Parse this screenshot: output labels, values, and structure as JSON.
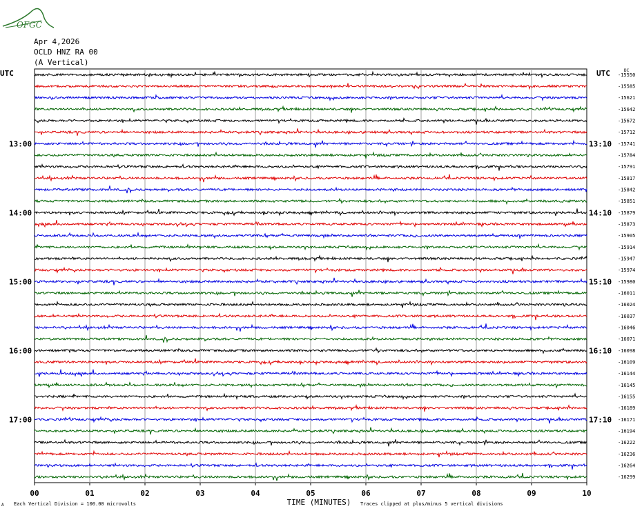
{
  "header": {
    "logo_text": "OFGC",
    "date": "Apr 4,2026",
    "station": "OCLD HNZ RA 00",
    "component": "(A Vertical)",
    "utc_left": "UTC",
    "utc_right": "UTC",
    "dc_label": "DC"
  },
  "footer": {
    "scale_note": "Each Vertical Division =  100.00 microvolts",
    "scale_marker": "A",
    "clip_note": "Traces clipped at plus/minus 5 vertical divisions"
  },
  "colors": {
    "trace_cycle": [
      "#000000",
      "#e00000",
      "#0000e0",
      "#006400"
    ],
    "grid": "#a0a0a0",
    "logo": "#2f7a2f"
  },
  "chart_data": {
    "type": "line",
    "xlabel": "TIME (MINUTES)",
    "x_ticks": [
      "00",
      "01",
      "02",
      "03",
      "04",
      "05",
      "06",
      "07",
      "08",
      "09",
      "10"
    ],
    "xlim": [
      0,
      10
    ],
    "left_time_labels": [
      {
        "row": 6,
        "label": "13:00"
      },
      {
        "row": 12,
        "label": "14:00"
      },
      {
        "row": 18,
        "label": "15:00"
      },
      {
        "row": 24,
        "label": "16:00"
      },
      {
        "row": 30,
        "label": "17:00"
      }
    ],
    "right_time_labels": [
      {
        "row": 6,
        "label": "13:10"
      },
      {
        "row": 12,
        "label": "14:10"
      },
      {
        "row": 18,
        "label": "15:10"
      },
      {
        "row": 24,
        "label": "16:10"
      },
      {
        "row": 30,
        "label": "17:10"
      }
    ],
    "dc_offsets": [
      "-15550",
      "-15585",
      "-15621",
      "-15642",
      "-15672",
      "-15712",
      "-15741",
      "-15784",
      "-15791",
      "-15817",
      "-15842",
      "-15851",
      "-15879",
      "-15873",
      "-15905",
      "-15914",
      "-15947",
      "-15974",
      "-15980",
      "-16011",
      "-16024",
      "-16037",
      "-16046",
      "-16071",
      "-16098",
      "-16109",
      "-16144",
      "-16145",
      "-16155",
      "-16189",
      "-16171",
      "-16194",
      "-16222",
      "-16236",
      "-16264",
      "-16299"
    ]
  }
}
